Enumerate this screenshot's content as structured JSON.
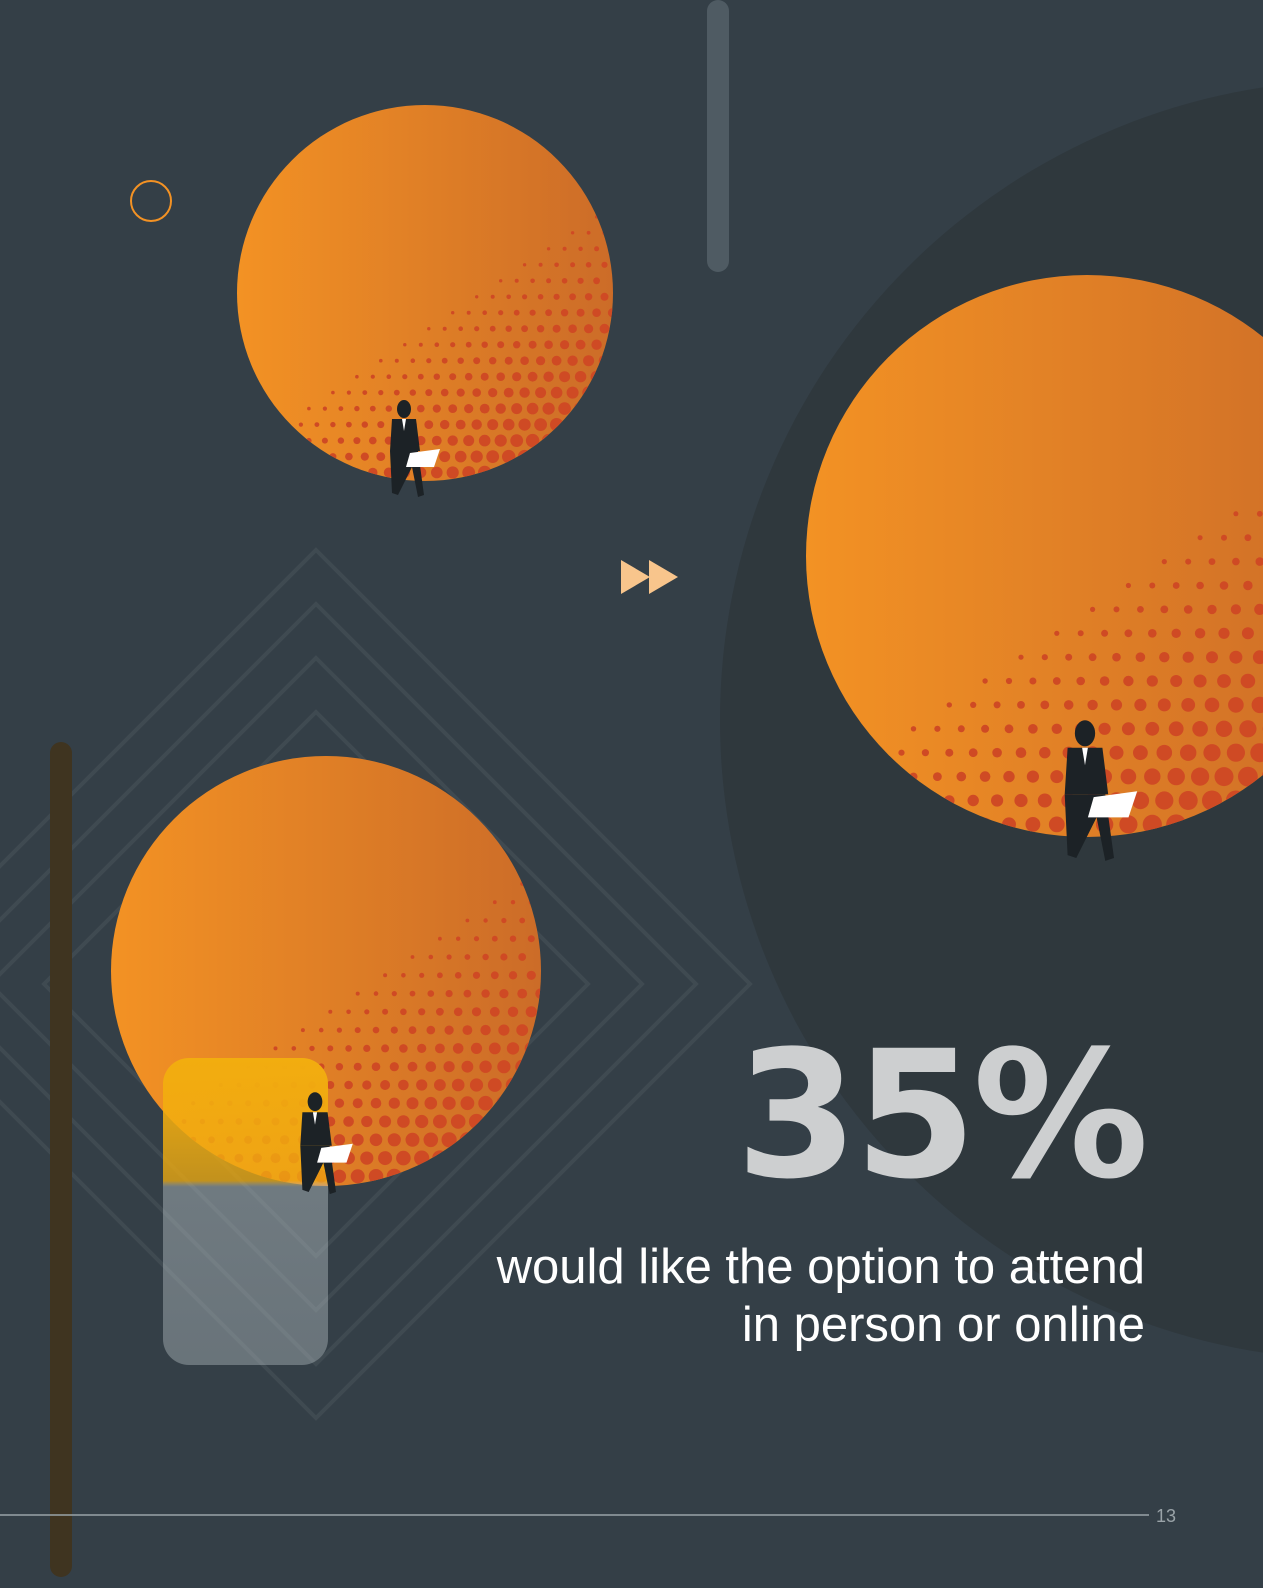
{
  "stat": {
    "value": "35%",
    "caption": "would like the option to attend in person or online"
  },
  "page_number": "13",
  "colors": {
    "background": "#343f47",
    "backdrop_circle": "#2f383d",
    "accent_orange": "#f39224",
    "dots": "#cf4a24",
    "yellow_accent": "#f2ad0f",
    "stat_text": "#cdcfd0"
  },
  "icons": [
    "fast-forward-icon",
    "person-with-laptop-icon",
    "ring-icon"
  ]
}
